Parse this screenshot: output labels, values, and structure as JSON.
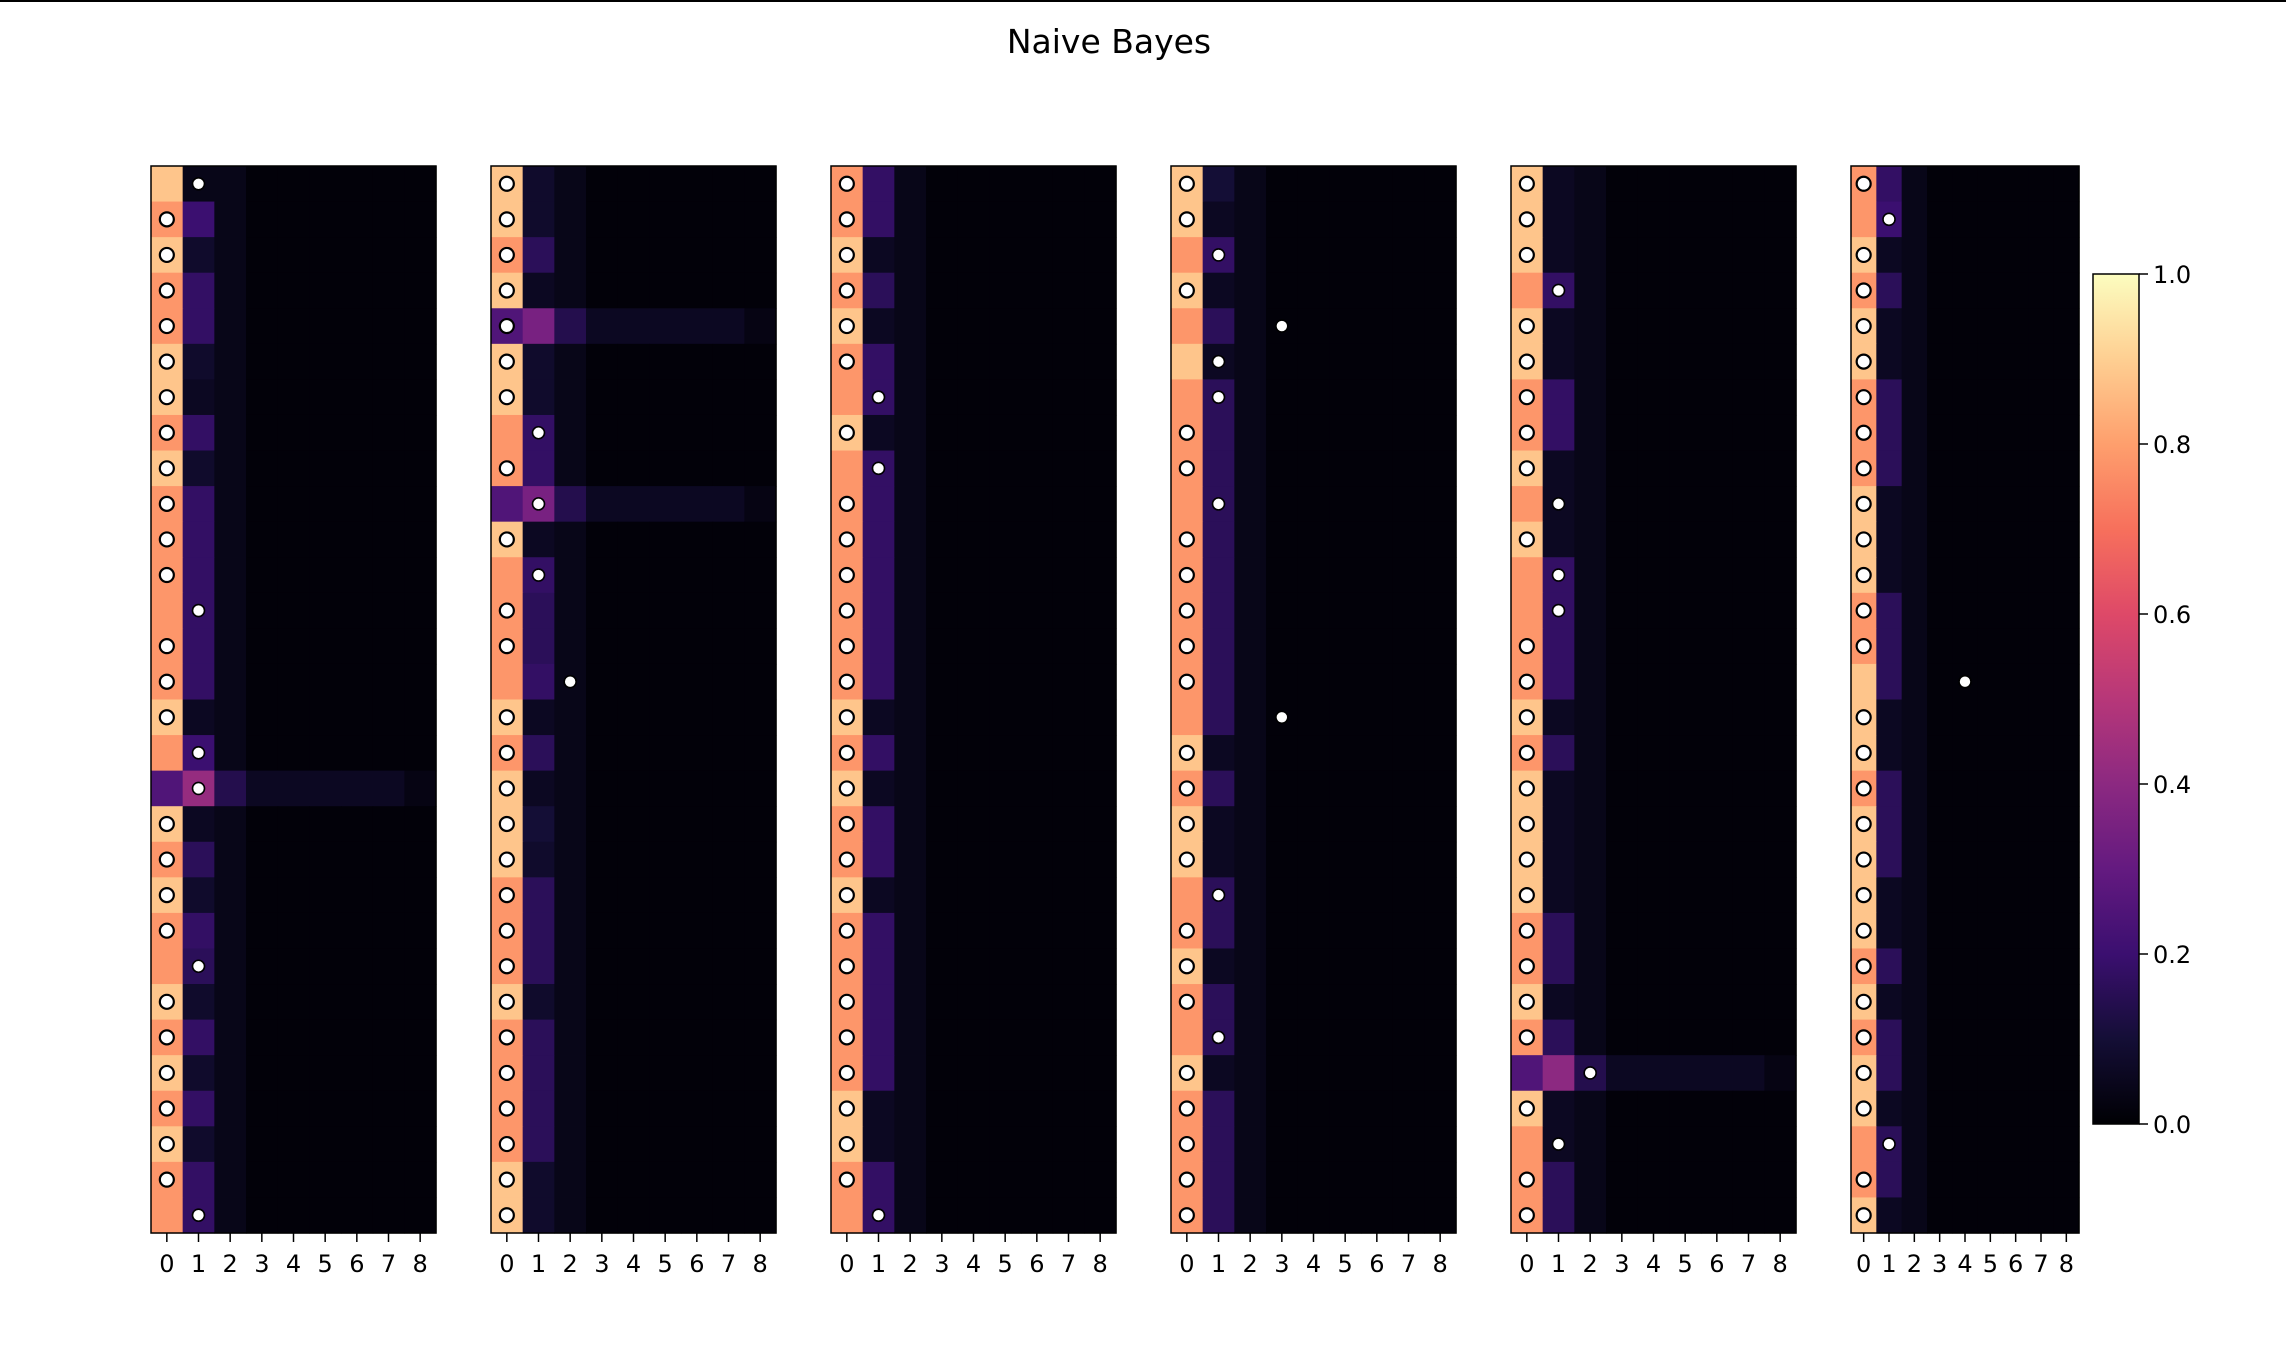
{
  "chart_data": {
    "type": "heatmap",
    "title": "Naive Bayes",
    "rows": 30,
    "x_ticks": [
      "0",
      "1",
      "2",
      "3",
      "4",
      "5",
      "6",
      "7",
      "8"
    ],
    "colormap": "magma",
    "colorbar": {
      "range": [
        0.0,
        1.0
      ],
      "ticks": [
        "0.0",
        "0.2",
        "0.4",
        "0.6",
        "0.8",
        "1.0"
      ]
    },
    "panels": [
      {
        "col0": [
          0.88,
          0.78,
          0.88,
          0.78,
          0.78,
          0.88,
          0.88,
          0.78,
          0.88,
          0.78,
          0.78,
          0.78,
          0.78,
          0.78,
          0.78,
          0.88,
          0.78,
          0.25,
          0.88,
          0.78,
          0.88,
          0.78,
          0.78,
          0.88,
          0.78,
          0.88,
          0.78,
          0.88,
          0.78,
          0.78
        ],
        "col1": [
          0.04,
          0.2,
          0.08,
          0.18,
          0.18,
          0.08,
          0.06,
          0.18,
          0.08,
          0.18,
          0.18,
          0.18,
          0.18,
          0.18,
          0.18,
          0.06,
          0.2,
          0.42,
          0.06,
          0.16,
          0.08,
          0.18,
          0.16,
          0.08,
          0.18,
          0.08,
          0.18,
          0.08,
          0.18,
          0.18
        ],
        "highlight_rows": [
          17
        ],
        "truth": [
          1,
          0,
          0,
          0,
          0,
          0,
          0,
          0,
          0,
          0,
          0,
          0,
          1,
          0,
          0,
          0,
          1,
          1,
          0,
          0,
          0,
          0,
          1,
          0,
          0,
          0,
          0,
          0,
          0,
          1
        ]
      },
      {
        "col0": [
          0.88,
          0.88,
          0.78,
          0.88,
          0.25,
          0.88,
          0.88,
          0.78,
          0.78,
          0.25,
          0.88,
          0.78,
          0.78,
          0.78,
          0.78,
          0.88,
          0.78,
          0.88,
          0.88,
          0.88,
          0.78,
          0.78,
          0.78,
          0.88,
          0.78,
          0.78,
          0.78,
          0.78,
          0.88,
          0.88
        ],
        "col1": [
          0.08,
          0.08,
          0.16,
          0.06,
          0.35,
          0.08,
          0.08,
          0.18,
          0.18,
          0.35,
          0.06,
          0.18,
          0.16,
          0.16,
          0.18,
          0.06,
          0.16,
          0.06,
          0.1,
          0.08,
          0.16,
          0.16,
          0.16,
          0.08,
          0.16,
          0.16,
          0.16,
          0.16,
          0.08,
          0.08
        ],
        "highlight_rows": [
          4,
          9
        ],
        "truth": [
          0,
          0,
          0,
          0,
          0,
          0,
          0,
          1,
          0,
          1,
          0,
          1,
          0,
          0,
          2,
          0,
          0,
          0,
          0,
          0,
          0,
          0,
          0,
          0,
          0,
          0,
          0,
          0,
          0,
          0
        ]
      },
      {
        "col0": [
          0.78,
          0.78,
          0.88,
          0.78,
          0.88,
          0.78,
          0.78,
          0.88,
          0.78,
          0.78,
          0.78,
          0.78,
          0.78,
          0.78,
          0.78,
          0.88,
          0.78,
          0.88,
          0.78,
          0.78,
          0.88,
          0.78,
          0.78,
          0.78,
          0.78,
          0.78,
          0.88,
          0.88,
          0.78,
          0.78
        ],
        "col1": [
          0.18,
          0.18,
          0.06,
          0.16,
          0.06,
          0.18,
          0.18,
          0.06,
          0.18,
          0.18,
          0.18,
          0.18,
          0.18,
          0.18,
          0.18,
          0.06,
          0.18,
          0.06,
          0.18,
          0.18,
          0.06,
          0.18,
          0.18,
          0.18,
          0.18,
          0.18,
          0.06,
          0.06,
          0.18,
          0.18
        ],
        "highlight_rows": [],
        "truth": [
          0,
          0,
          0,
          0,
          0,
          0,
          1,
          0,
          1,
          0,
          0,
          0,
          0,
          0,
          0,
          0,
          0,
          0,
          0,
          0,
          0,
          0,
          0,
          0,
          0,
          0,
          0,
          0,
          0,
          1
        ]
      },
      {
        "col0": [
          0.88,
          0.88,
          0.78,
          0.88,
          0.78,
          0.88,
          0.78,
          0.78,
          0.78,
          0.78,
          0.78,
          0.78,
          0.78,
          0.78,
          0.78,
          0.78,
          0.88,
          0.78,
          0.88,
          0.88,
          0.78,
          0.78,
          0.88,
          0.78,
          0.78,
          0.88,
          0.78,
          0.78,
          0.78,
          0.78
        ],
        "col1": [
          0.1,
          0.06,
          0.18,
          0.06,
          0.16,
          0.06,
          0.16,
          0.16,
          0.16,
          0.16,
          0.16,
          0.16,
          0.16,
          0.16,
          0.16,
          0.16,
          0.06,
          0.16,
          0.06,
          0.06,
          0.16,
          0.16,
          0.06,
          0.16,
          0.16,
          0.06,
          0.16,
          0.16,
          0.16,
          0.16
        ],
        "highlight_rows": [],
        "truth": [
          0,
          0,
          1,
          0,
          3,
          1,
          1,
          0,
          0,
          1,
          0,
          0,
          0,
          0,
          0,
          3,
          0,
          0,
          0,
          0,
          1,
          0,
          0,
          0,
          1,
          0,
          0,
          0,
          0,
          0
        ]
      },
      {
        "col0": [
          0.88,
          0.88,
          0.88,
          0.78,
          0.88,
          0.88,
          0.78,
          0.78,
          0.88,
          0.78,
          0.88,
          0.78,
          0.78,
          0.78,
          0.78,
          0.88,
          0.78,
          0.88,
          0.88,
          0.88,
          0.88,
          0.78,
          0.78,
          0.88,
          0.78,
          0.25,
          0.88,
          0.78,
          0.78,
          0.78
        ],
        "col1": [
          0.06,
          0.06,
          0.06,
          0.18,
          0.06,
          0.06,
          0.18,
          0.18,
          0.06,
          0.06,
          0.06,
          0.18,
          0.18,
          0.18,
          0.18,
          0.06,
          0.16,
          0.06,
          0.06,
          0.06,
          0.06,
          0.16,
          0.16,
          0.06,
          0.16,
          0.4,
          0.06,
          0.06,
          0.16,
          0.16
        ],
        "highlight_rows": [
          25
        ],
        "truth": [
          0,
          0,
          0,
          1,
          0,
          0,
          0,
          0,
          0,
          1,
          0,
          1,
          1,
          0,
          0,
          0,
          0,
          0,
          0,
          0,
          0,
          0,
          0,
          0,
          0,
          2,
          0,
          1,
          0,
          0
        ]
      },
      {
        "col0": [
          0.78,
          0.78,
          0.88,
          0.78,
          0.88,
          0.88,
          0.78,
          0.78,
          0.78,
          0.88,
          0.88,
          0.88,
          0.78,
          0.78,
          0.88,
          0.88,
          0.88,
          0.78,
          0.88,
          0.88,
          0.88,
          0.88,
          0.78,
          0.88,
          0.78,
          0.88,
          0.88,
          0.78,
          0.78,
          0.88
        ],
        "col1": [
          0.18,
          0.2,
          0.06,
          0.16,
          0.06,
          0.06,
          0.16,
          0.16,
          0.16,
          0.06,
          0.06,
          0.06,
          0.16,
          0.16,
          0.16,
          0.06,
          0.06,
          0.16,
          0.16,
          0.16,
          0.06,
          0.06,
          0.16,
          0.06,
          0.16,
          0.16,
          0.06,
          0.16,
          0.16,
          0.06
        ],
        "highlight_rows": [],
        "truth": [
          0,
          1,
          0,
          0,
          0,
          0,
          0,
          0,
          0,
          0,
          0,
          0,
          0,
          0,
          4,
          0,
          0,
          0,
          0,
          0,
          0,
          0,
          0,
          0,
          0,
          0,
          0,
          1,
          0,
          0
        ]
      }
    ]
  }
}
